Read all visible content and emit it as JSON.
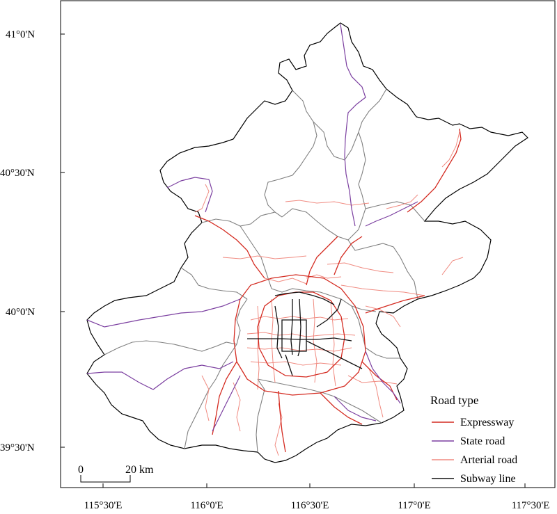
{
  "axes": {
    "x_ticks": [
      "115°30'E",
      "116°0'E",
      "116°30'E",
      "117°0'E",
      "117°30'E"
    ],
    "y_ticks": [
      "41°0'N",
      "40°30'N",
      "40°0'N",
      "39°30'N"
    ]
  },
  "scalebar": {
    "start_label": "0",
    "end_label": "20 km"
  },
  "legend": {
    "title": "Road type",
    "items": [
      {
        "label": "Expressway",
        "color": "#d42a20"
      },
      {
        "label": "State road",
        "color": "#7b3fa0"
      },
      {
        "label": "Arterial road",
        "color": "#f08a80"
      },
      {
        "label": "Subway line",
        "color": "#111111"
      }
    ]
  },
  "colors": {
    "boundary": "#000000",
    "district": "#7f7f7f"
  }
}
